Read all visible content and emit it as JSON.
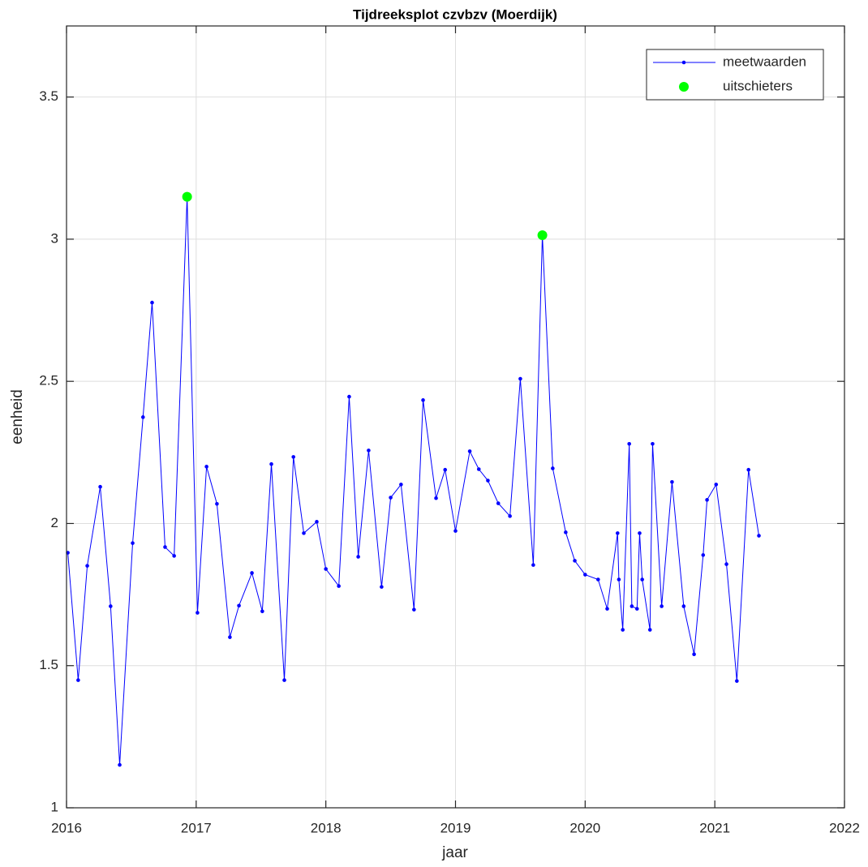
{
  "chart_data": {
    "type": "line",
    "title": "Tijdreeksplot czvbzv (Moerdijk)",
    "x_label": "jaar",
    "y_label": "eenheid",
    "xlim": [
      2016,
      2022
    ],
    "xticks": [
      2016,
      2017,
      2018,
      2019,
      2020,
      2021,
      2022
    ],
    "ylim": [
      1,
      3.75
    ],
    "yticks": [
      1,
      1.5,
      2,
      2.5,
      3,
      3.5
    ],
    "grid": true,
    "legend_position": "top-right",
    "series": [
      {
        "name": "meetwaarden",
        "color": "#0000ff",
        "style": "line-dots",
        "x": [
          2016.01,
          2016.09,
          2016.16,
          2016.26,
          2016.34,
          2016.41,
          2016.51,
          2016.59,
          2016.66,
          2016.76,
          2016.83,
          2016.93,
          2017.01,
          2017.08,
          2017.16,
          2017.26,
          2017.33,
          2017.43,
          2017.51,
          2017.58,
          2017.68,
          2017.75,
          2017.83,
          2017.93,
          2018.0,
          2018.1,
          2018.18,
          2018.25,
          2018.33,
          2018.43,
          2018.5,
          2018.58,
          2018.68,
          2018.75,
          2018.85,
          2018.92,
          2019.0,
          2019.11,
          2019.18,
          2019.25,
          2019.33,
          2019.42,
          2019.5,
          2019.6,
          2019.67,
          2019.75,
          2019.85,
          2019.92,
          2020.0,
          2020.1,
          2020.17,
          2020.25,
          2020.26,
          2020.29,
          2020.34,
          2020.36,
          2020.4,
          2020.42,
          2020.44,
          2020.5,
          2020.52,
          2020.59,
          2020.67,
          2020.76,
          2020.84,
          2020.91,
          2020.94,
          2021.01,
          2021.09,
          2021.17,
          2021.26,
          2021.34
        ],
        "values": [
          1.897,
          1.449,
          1.851,
          2.129,
          1.709,
          1.151,
          1.931,
          2.374,
          2.777,
          1.917,
          1.886,
          3.149,
          1.686,
          2.2,
          2.069,
          1.6,
          1.711,
          1.826,
          1.691,
          2.209,
          1.449,
          2.234,
          1.966,
          2.006,
          1.84,
          1.78,
          2.446,
          1.883,
          2.257,
          1.777,
          2.091,
          2.137,
          1.697,
          2.434,
          2.089,
          2.189,
          1.974,
          2.254,
          2.191,
          2.151,
          2.071,
          2.026,
          2.509,
          1.854,
          3.014,
          2.194,
          1.969,
          1.869,
          1.82,
          1.803,
          1.7,
          1.966,
          1.803,
          1.626,
          2.28,
          1.709,
          1.7,
          1.966,
          1.803,
          1.626,
          2.28,
          1.709,
          2.146,
          1.709,
          1.54,
          1.889,
          2.083,
          2.137,
          1.857,
          1.446,
          2.189,
          1.957
        ]
      },
      {
        "name": "uitschieters",
        "color": "#00ff00",
        "style": "markers",
        "x": [
          2016.93,
          2019.67
        ],
        "values": [
          3.149,
          3.014
        ]
      }
    ]
  }
}
